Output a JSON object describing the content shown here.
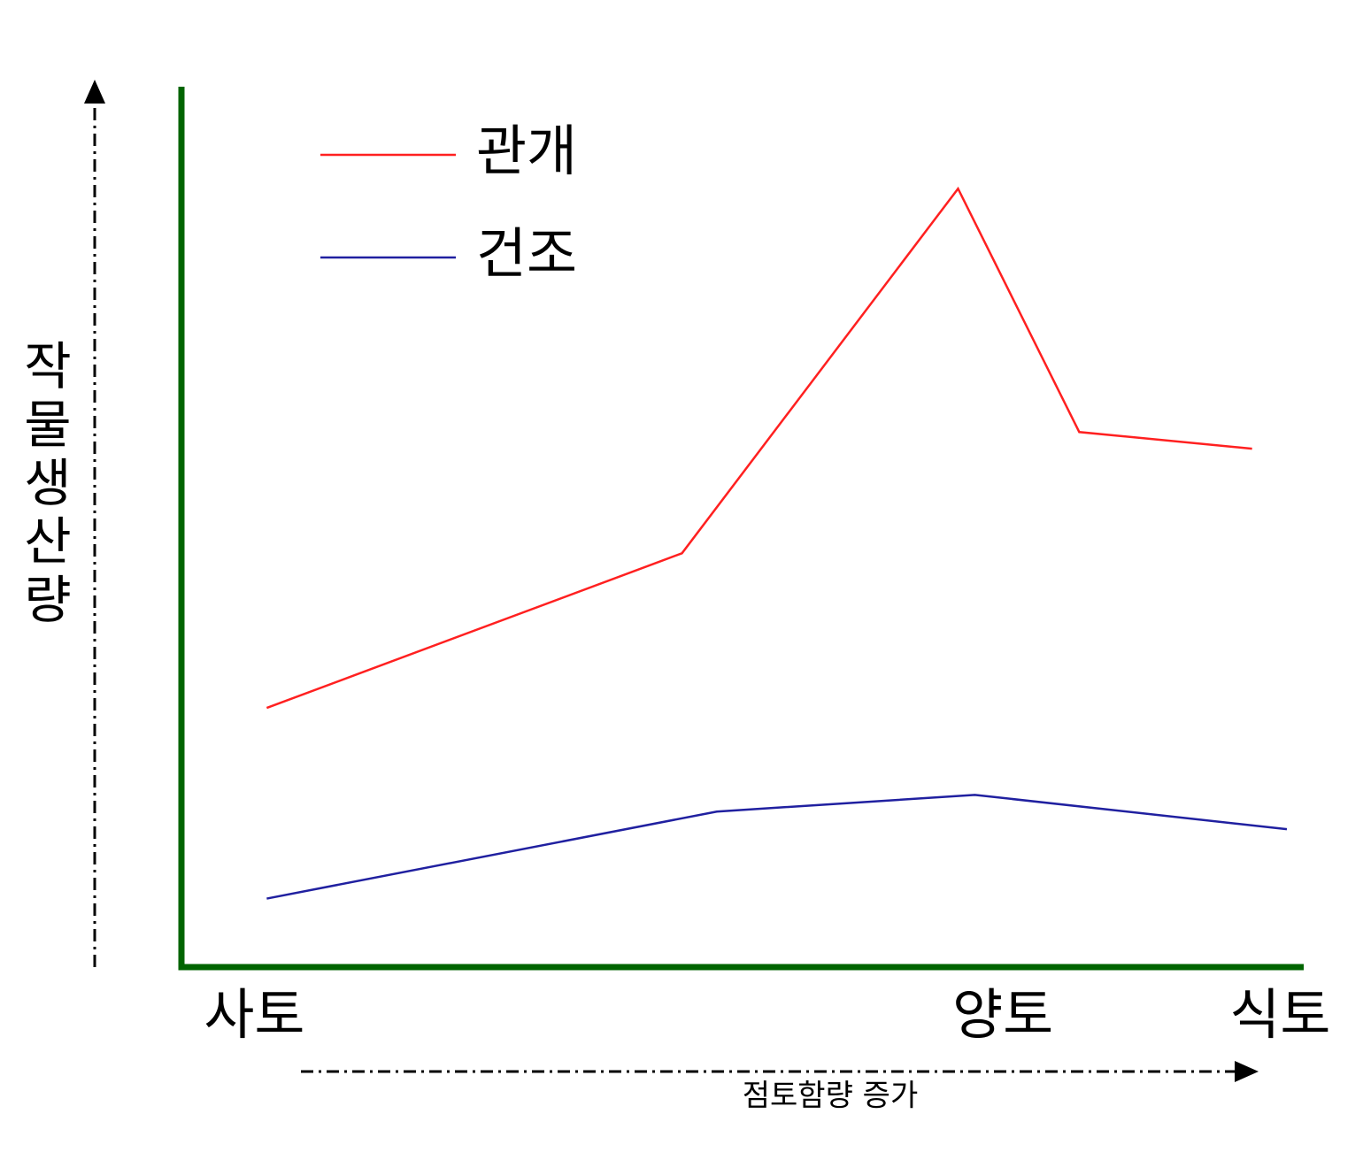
{
  "chart_data": {
    "type": "line",
    "y_label": "작물생산량",
    "x_label": "점토함량 증가",
    "xlim": [
      0,
      100
    ],
    "ylim": [
      0,
      100
    ],
    "xticks": [
      {
        "value": 6.5,
        "label": "사토"
      },
      {
        "value": 73.2,
        "label": "양토"
      },
      {
        "value": 97.9,
        "label": "식토"
      }
    ],
    "axis_color": "#006400",
    "series": [
      {
        "name": "관개",
        "color": "#ff2020",
        "x": [
          7.6,
          44.6,
          69.2,
          80.0,
          95.4
        ],
        "values": [
          29.5,
          47.1,
          88.6,
          60.9,
          59.0
        ]
      },
      {
        "name": "건조",
        "color": "#2020a0",
        "x": [
          7.6,
          47.7,
          70.7,
          98.5
        ],
        "values": [
          7.8,
          17.7,
          19.6,
          15.7
        ]
      }
    ]
  }
}
